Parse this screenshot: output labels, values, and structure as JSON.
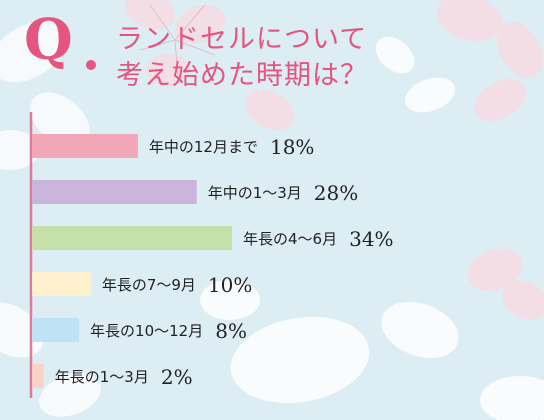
{
  "header": {
    "q_label": "Q",
    "title_line1": "ランドセルについて",
    "title_line2": "考え始めた時期は？"
  },
  "colors": {
    "accent": "#e4557f",
    "background": "#dcedf3",
    "axis": "#e07a99"
  },
  "chart_data": {
    "type": "bar",
    "orientation": "horizontal",
    "title": "ランドセルについて考え始めた時期は？",
    "categories": [
      "年中の12月まで",
      "年中の1～3月",
      "年長の4～6月",
      "年長の7～9月",
      "年長の10～12月",
      "年長の1～3月"
    ],
    "values": [
      18,
      28,
      34,
      10,
      8,
      2
    ],
    "value_labels": [
      "18%",
      "28%",
      "34%",
      "10%",
      "8%",
      "2%"
    ],
    "unit": "%",
    "bar_colors": [
      "#f2a7b9",
      "#cab5dc",
      "#c6e0a9",
      "#fdf0cd",
      "#bde3f4",
      "#fbd3c6"
    ],
    "xlim": [
      0,
      34
    ],
    "grid": false,
    "legend": "none"
  }
}
